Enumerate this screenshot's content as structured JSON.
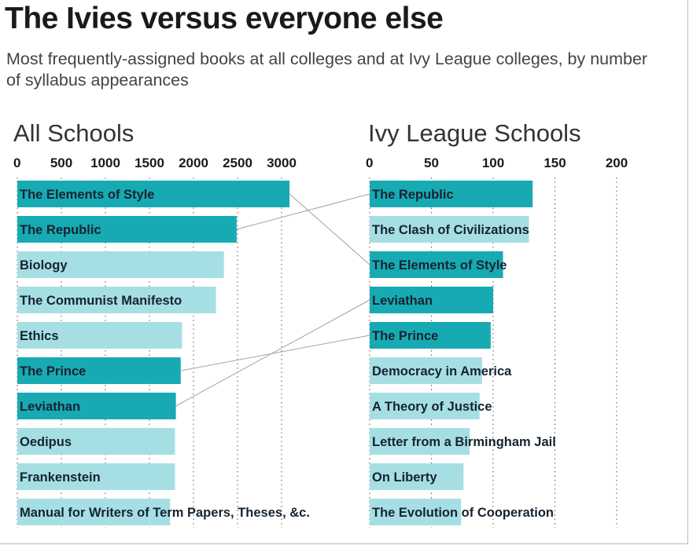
{
  "title": "The Ivies versus everyone else",
  "subtitle": "Most frequently-assigned books at all colleges and at Ivy League colleges, by number of syllabus appearances",
  "colors": {
    "highlight": "#18aab3",
    "normal": "#a6dfe3",
    "link": "#9aa6ad"
  },
  "chart_data": [
    {
      "type": "bar",
      "orientation": "horizontal",
      "title": "All Schools",
      "xlim": [
        0,
        3000
      ],
      "ticks": [
        0,
        500,
        1000,
        1500,
        2000,
        2500,
        3000
      ],
      "grid": true,
      "categories": [
        "The Elements of Style",
        "The Republic",
        "Biology",
        "The Communist Manifesto",
        "Ethics",
        "The Prince",
        "Leviathan",
        "Oedipus",
        "Frankenstein",
        "Manual for Writers of Term Papers, Theses, &c."
      ],
      "values": [
        3090,
        2490,
        2345,
        2255,
        1870,
        1855,
        1800,
        1790,
        1790,
        1735
      ],
      "highlighted": [
        true,
        true,
        false,
        false,
        false,
        true,
        true,
        false,
        false,
        false
      ]
    },
    {
      "type": "bar",
      "orientation": "horizontal",
      "title": "Ivy League Schools",
      "xlim": [
        0,
        200
      ],
      "ticks": [
        0,
        50,
        100,
        150,
        200
      ],
      "grid": true,
      "categories": [
        "The Republic",
        "The Clash of Civilizations",
        "The Elements of Style",
        "Leviathan",
        "The Prince",
        "Democracy in America",
        "A Theory of Justice",
        "Letter from a Birmingham Jail",
        "On Liberty",
        "The Evolution of Cooperation"
      ],
      "values": [
        132,
        129,
        108,
        100,
        98,
        91,
        89,
        81,
        76,
        74
      ],
      "highlighted": [
        true,
        false,
        true,
        true,
        true,
        false,
        false,
        false,
        false,
        false
      ]
    }
  ]
}
